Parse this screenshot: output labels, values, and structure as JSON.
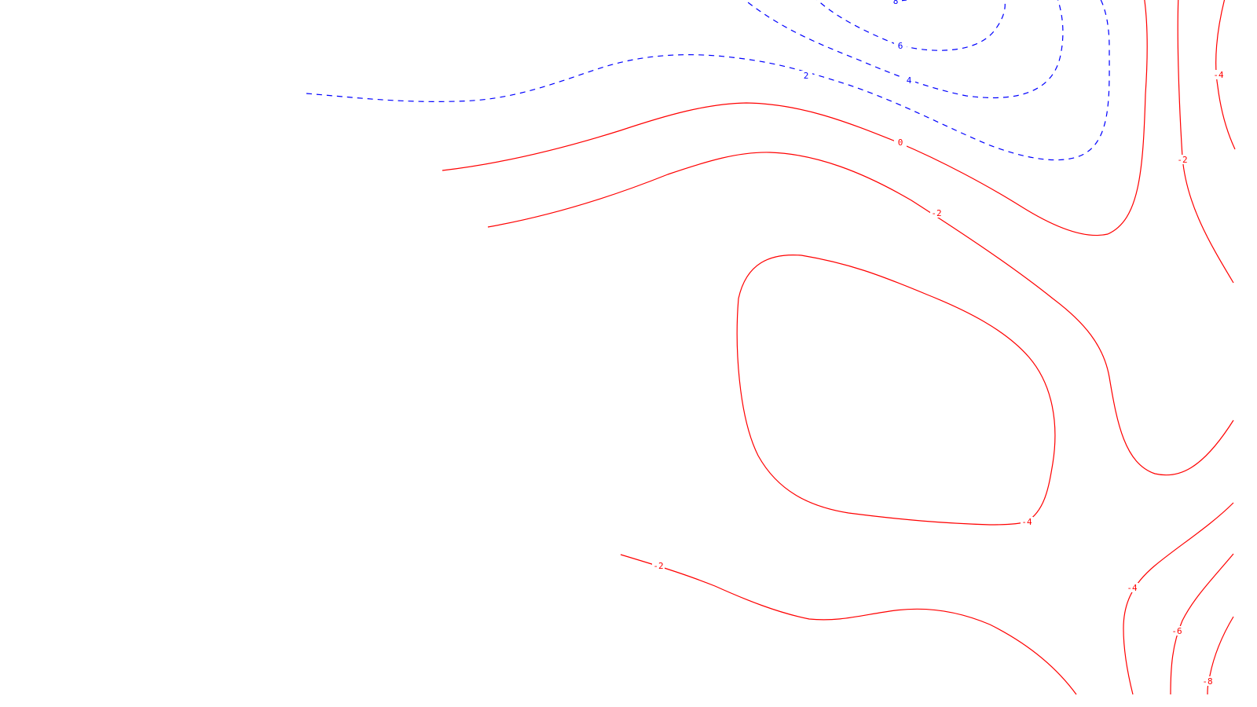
{
  "chart_data": {
    "type": "contour",
    "title": "",
    "xlabel": "",
    "ylabel": "",
    "grid": false,
    "legend": "none",
    "colors": {
      "positive": "#0000ff",
      "negative_or_zero": "#ff0000"
    },
    "line_styles": {
      "positive": "dashed",
      "negative_or_zero": "solid"
    },
    "contour_levels": [
      {
        "id": "pos-8",
        "value": 8,
        "label": "8"
      },
      {
        "id": "pos-6",
        "value": 6,
        "label": "6"
      },
      {
        "id": "pos-4",
        "value": 4,
        "label": "4"
      },
      {
        "id": "pos-2",
        "value": 2,
        "label": "2"
      },
      {
        "id": "zero-0",
        "value": 0,
        "label": "0"
      },
      {
        "id": "neg-2-upper",
        "value": -2,
        "label": "-2"
      },
      {
        "id": "neg-2-right",
        "value": -2,
        "label": "-2"
      },
      {
        "id": "neg-4-loop",
        "value": -4,
        "label": "-4"
      },
      {
        "id": "neg-4-right",
        "value": -4,
        "label": "-4"
      },
      {
        "id": "neg-2-lower",
        "value": -2,
        "label": "-2"
      },
      {
        "id": "neg-4-lower",
        "value": -4,
        "label": "-4"
      },
      {
        "id": "neg-6-lower",
        "value": -6,
        "label": "-6"
      },
      {
        "id": "neg-8-lower",
        "value": -8,
        "label": "-8"
      }
    ]
  }
}
